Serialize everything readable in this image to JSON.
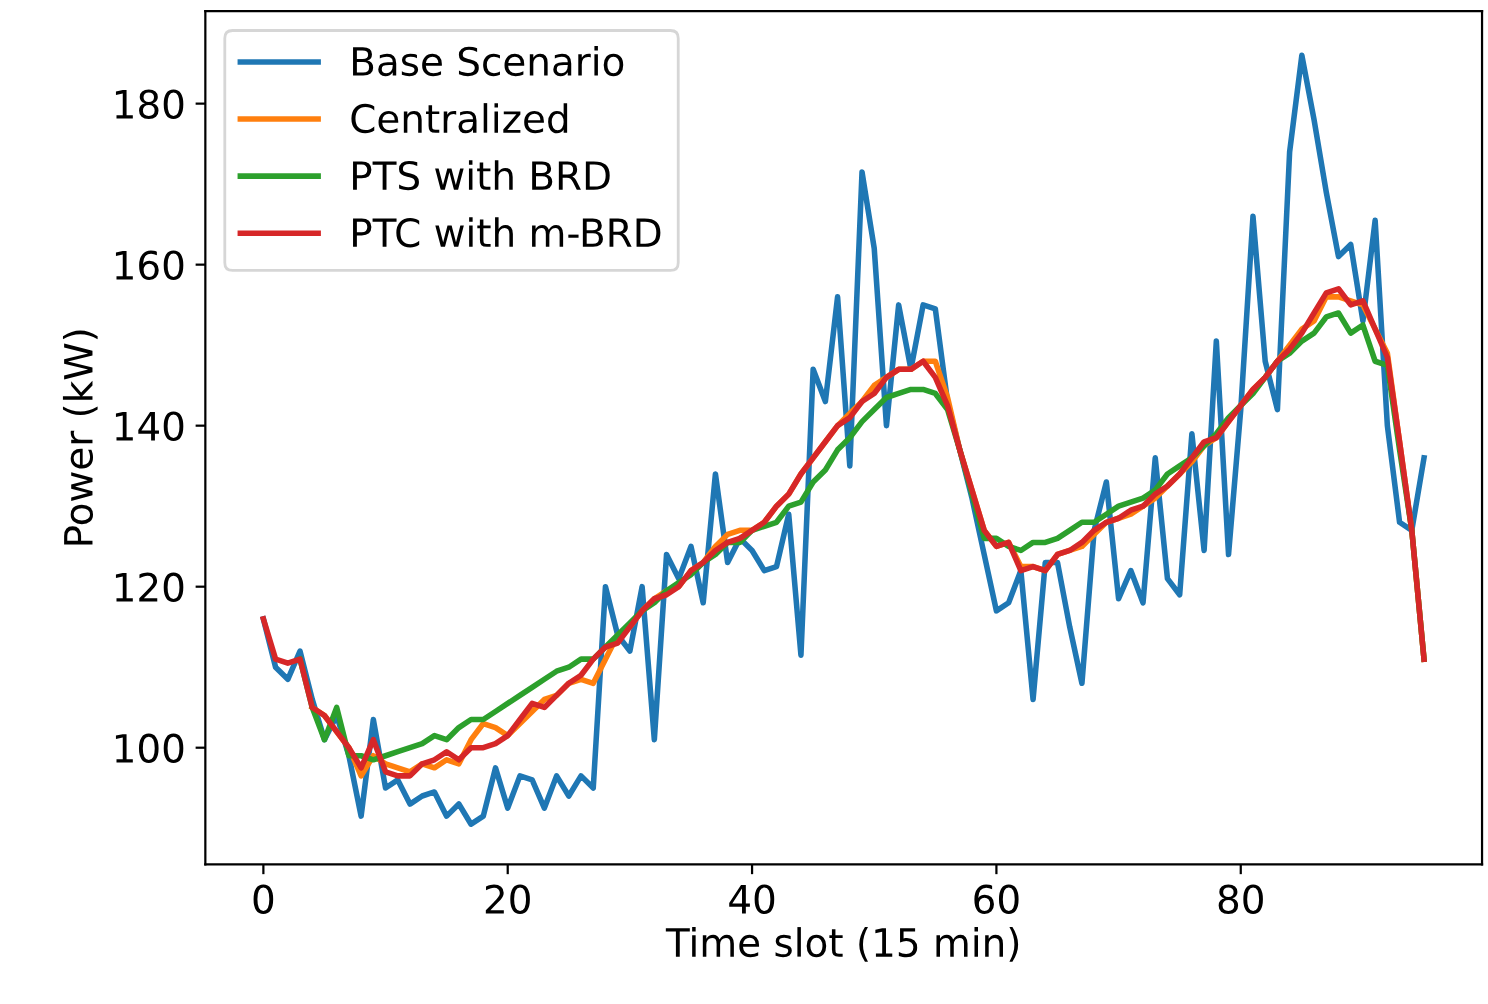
{
  "chart_data": {
    "type": "line",
    "xlabel": "Time slot (15 min)",
    "ylabel": "Power (kW)",
    "xlim": [
      -4.75,
      99.75
    ],
    "ylim": [
      85.5,
      191.5
    ],
    "xticks": [
      0,
      20,
      40,
      60,
      80
    ],
    "yticks": [
      100,
      120,
      140,
      160,
      180
    ],
    "grid": false,
    "legend": "top left",
    "marker": "none",
    "line_style": "solid",
    "x": [
      0,
      1,
      2,
      3,
      4,
      5,
      6,
      7,
      8,
      9,
      10,
      11,
      12,
      13,
      14,
      15,
      16,
      17,
      18,
      19,
      20,
      21,
      22,
      23,
      24,
      25,
      26,
      27,
      28,
      29,
      30,
      31,
      32,
      33,
      34,
      35,
      36,
      37,
      38,
      39,
      40,
      41,
      42,
      43,
      44,
      45,
      46,
      47,
      48,
      49,
      50,
      51,
      52,
      53,
      54,
      55,
      56,
      57,
      58,
      59,
      60,
      61,
      62,
      63,
      64,
      65,
      66,
      67,
      68,
      69,
      70,
      71,
      72,
      73,
      74,
      75,
      76,
      77,
      78,
      79,
      80,
      81,
      82,
      83,
      84,
      85,
      86,
      87,
      88,
      89,
      90,
      91,
      92,
      93,
      94,
      95
    ],
    "series": [
      {
        "name": "Base Scenario",
        "color": "#1f77b4",
        "values": [
          116,
          110,
          108.5,
          112,
          106,
          101,
          104,
          99,
          91.5,
          103.5,
          95,
          96,
          93,
          94,
          94.5,
          91.5,
          93,
          90.5,
          91.5,
          97.5,
          92.5,
          96.5,
          96,
          92.5,
          96.5,
          94,
          96.5,
          95,
          120,
          114,
          112,
          120,
          101,
          124,
          121,
          125,
          118,
          134,
          123,
          126,
          124.5,
          122,
          122.5,
          129,
          111.5,
          147,
          143,
          156,
          135,
          171.5,
          162,
          140,
          155,
          147,
          155,
          154.5,
          143,
          137,
          131,
          124,
          117,
          118,
          122,
          106,
          123,
          123,
          115,
          108,
          127,
          133,
          118.5,
          122,
          118,
          136,
          121,
          119,
          139,
          124.5,
          150.5,
          124,
          142,
          166,
          148,
          142,
          174,
          186,
          178,
          169,
          161,
          162.5,
          153,
          165.5,
          140,
          128,
          127,
          136
        ]
      },
      {
        "name": "Centralized",
        "color": "#ff7f0e",
        "values": [
          null,
          null,
          null,
          null,
          105,
          104,
          102,
          100,
          96.5,
          99,
          98,
          97.5,
          97,
          98,
          97.5,
          98.5,
          98,
          101,
          103,
          102.5,
          101.5,
          103,
          104.5,
          106,
          106.5,
          108,
          108.5,
          108,
          111,
          114,
          115,
          117,
          118.5,
          119.5,
          120,
          122,
          123,
          125,
          126.5,
          127,
          127,
          128,
          130,
          131.5,
          134,
          136,
          138,
          140,
          141.5,
          143,
          145,
          146,
          147,
          147,
          148,
          148,
          143.5,
          137,
          132,
          127,
          125,
          125.5,
          122.5,
          122.5,
          122,
          124,
          124.5,
          125,
          126.5,
          128,
          128.5,
          129,
          130,
          131,
          132.5,
          134,
          135.5,
          137.5,
          138.5,
          140.5,
          142.5,
          144.5,
          146,
          148,
          150,
          152,
          153,
          156,
          156,
          155.5,
          155,
          152,
          149,
          138,
          127,
          111
        ]
      },
      {
        "name": "PTS with BRD",
        "color": "#2ca02c",
        "values": [
          null,
          null,
          null,
          111,
          105,
          101,
          105,
          99,
          99,
          98.5,
          99,
          99.5,
          100,
          100.5,
          101.5,
          101,
          102.5,
          103.5,
          103.5,
          104.5,
          105.5,
          106.5,
          107.5,
          108.5,
          109.5,
          110,
          111,
          111,
          112.5,
          114,
          115.5,
          117,
          118,
          119.5,
          120.5,
          121.5,
          123,
          124,
          125.5,
          125.5,
          127,
          127.5,
          128,
          130,
          130.5,
          133,
          134.5,
          137,
          138.5,
          140.5,
          142,
          143.5,
          144,
          144.5,
          144.5,
          144,
          142,
          137,
          131.5,
          126,
          126,
          125,
          124.5,
          125.5,
          125.5,
          126,
          127,
          128,
          128,
          129,
          130,
          130.5,
          131,
          132,
          134,
          135,
          136,
          137.5,
          139,
          141,
          142.5,
          144,
          146,
          148,
          149,
          150.5,
          151.5,
          153.5,
          154,
          151.5,
          152.5,
          148,
          147.5,
          137,
          127,
          111
        ]
      },
      {
        "name": "PTC with m-BRD",
        "color": "#d62728",
        "values": [
          116,
          111,
          110.5,
          111,
          105,
          104,
          102,
          100,
          97.5,
          101,
          97,
          96.5,
          96.5,
          98,
          98.5,
          99.5,
          98.5,
          100,
          100,
          100.5,
          101.5,
          103.5,
          105.5,
          105,
          106.5,
          108,
          109,
          111,
          112.5,
          113,
          115,
          117,
          118.5,
          119,
          120,
          122,
          123,
          124.5,
          125.5,
          126,
          127,
          128,
          130,
          131.5,
          134,
          136,
          138,
          140,
          141,
          143,
          144,
          146,
          147,
          147,
          148,
          146,
          142.5,
          137,
          132,
          127,
          125,
          125.5,
          122,
          122.5,
          122,
          124,
          124.5,
          125.5,
          127,
          128,
          128.5,
          129.5,
          130,
          131.5,
          132.5,
          134,
          136,
          138,
          138.5,
          140.5,
          142.5,
          144.5,
          146,
          148,
          149.5,
          151.5,
          154,
          156.5,
          157,
          155,
          155.5,
          152,
          148.5,
          138,
          127,
          111
        ]
      }
    ]
  }
}
